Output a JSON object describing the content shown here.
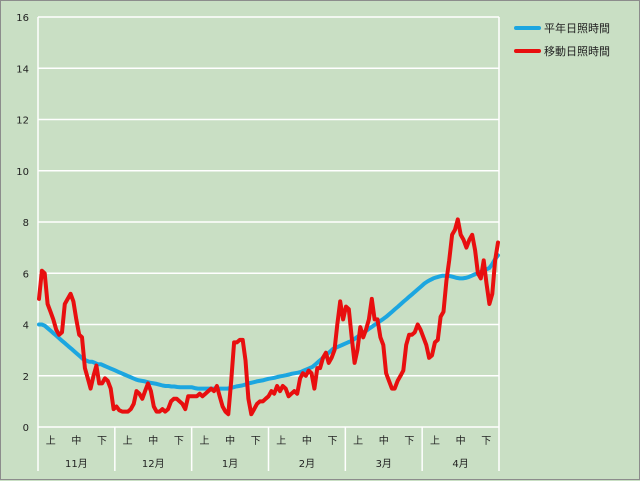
{
  "chart_data": {
    "type": "line",
    "ylim": [
      0,
      16
    ],
    "yticks": [
      "0",
      "2",
      "4",
      "6",
      "8",
      "10",
      "12",
      "14",
      "16"
    ],
    "ystep": 2,
    "grid": true,
    "legend_placement": "top-right",
    "ten_day_labels": [
      "上",
      "中",
      "下"
    ],
    "months": [
      "11月",
      "12月",
      "1月",
      "2月",
      "3月",
      "4月"
    ],
    "series": [
      {
        "name": "平年日照時間",
        "color": "#1ca6e0",
        "values": [
          4.0,
          4.0,
          3.95,
          3.85,
          3.75,
          3.65,
          3.55,
          3.45,
          3.35,
          3.25,
          3.15,
          3.05,
          2.95,
          2.85,
          2.75,
          2.65,
          2.6,
          2.55,
          2.55,
          2.5,
          2.45,
          2.45,
          2.4,
          2.35,
          2.3,
          2.25,
          2.2,
          2.15,
          2.1,
          2.05,
          2.0,
          1.95,
          1.9,
          1.85,
          1.82,
          1.8,
          1.78,
          1.75,
          1.72,
          1.7,
          1.68,
          1.65,
          1.62,
          1.6,
          1.6,
          1.58,
          1.58,
          1.56,
          1.55,
          1.55,
          1.55,
          1.55,
          1.55,
          1.52,
          1.5,
          1.5,
          1.5,
          1.5,
          1.5,
          1.5,
          1.5,
          1.5,
          1.5,
          1.5,
          1.5,
          1.52,
          1.55,
          1.58,
          1.6,
          1.62,
          1.65,
          1.7,
          1.72,
          1.75,
          1.78,
          1.8,
          1.82,
          1.85,
          1.88,
          1.9,
          1.92,
          1.95,
          1.98,
          2.0,
          2.02,
          2.05,
          2.08,
          2.1,
          2.12,
          2.15,
          2.2,
          2.25,
          2.3,
          2.35,
          2.45,
          2.55,
          2.65,
          2.75,
          2.85,
          2.95,
          3.05,
          3.1,
          3.15,
          3.2,
          3.25,
          3.3,
          3.35,
          3.42,
          3.5,
          3.58,
          3.66,
          3.74,
          3.82,
          3.9,
          3.98,
          4.06,
          4.14,
          4.22,
          4.3,
          4.4,
          4.5,
          4.6,
          4.7,
          4.8,
          4.9,
          5.0,
          5.1,
          5.2,
          5.3,
          5.4,
          5.5,
          5.6,
          5.68,
          5.74,
          5.8,
          5.84,
          5.87,
          5.9,
          5.9,
          5.9,
          5.88,
          5.85,
          5.82,
          5.8,
          5.8,
          5.82,
          5.85,
          5.9,
          5.95,
          6.0,
          6.05,
          6.1,
          6.15,
          6.2,
          6.35,
          6.55,
          6.7
        ]
      },
      {
        "name": "移動日照時間",
        "color": "#e80f0f",
        "values": [
          5.0,
          6.1,
          6.0,
          4.8,
          4.5,
          4.2,
          3.8,
          3.6,
          3.7,
          4.8,
          5.0,
          5.2,
          4.9,
          4.2,
          3.6,
          3.5,
          2.3,
          1.9,
          1.5,
          2.0,
          2.4,
          1.7,
          1.7,
          1.9,
          1.8,
          1.5,
          0.7,
          0.8,
          0.65,
          0.6,
          0.6,
          0.6,
          0.7,
          0.9,
          1.4,
          1.3,
          1.1,
          1.4,
          1.7,
          1.4,
          0.8,
          0.6,
          0.6,
          0.7,
          0.6,
          0.7,
          1.0,
          1.1,
          1.1,
          1.0,
          0.9,
          0.7,
          1.2,
          1.2,
          1.2,
          1.2,
          1.3,
          1.2,
          1.3,
          1.4,
          1.5,
          1.4,
          1.6,
          1.2,
          0.8,
          0.6,
          0.5,
          1.8,
          3.3,
          3.3,
          3.4,
          3.4,
          2.6,
          1.1,
          0.5,
          0.7,
          0.9,
          1.0,
          1.0,
          1.1,
          1.2,
          1.4,
          1.3,
          1.6,
          1.4,
          1.6,
          1.5,
          1.2,
          1.3,
          1.4,
          1.3,
          1.9,
          2.1,
          2.0,
          2.2,
          2.1,
          1.5,
          2.3,
          2.3,
          2.7,
          2.9,
          2.5,
          2.7,
          3.0,
          4.0,
          4.9,
          4.2,
          4.7,
          4.6,
          3.5,
          2.5,
          3.0,
          3.9,
          3.5,
          3.8,
          4.2,
          5.0,
          4.2,
          4.2,
          3.5,
          3.2,
          2.1,
          1.8,
          1.5,
          1.5,
          1.8,
          2.0,
          2.2,
          3.2,
          3.6,
          3.6,
          3.7,
          4.0,
          3.8,
          3.5,
          3.2,
          2.7,
          2.8,
          3.3,
          3.4,
          4.3,
          4.5,
          5.7,
          6.5,
          7.5,
          7.7,
          8.1,
          7.5,
          7.3,
          7.0,
          7.3,
          7.5,
          6.9,
          6.0,
          5.8,
          6.5,
          5.6,
          4.8,
          5.2,
          6.5,
          7.2
        ]
      }
    ]
  }
}
